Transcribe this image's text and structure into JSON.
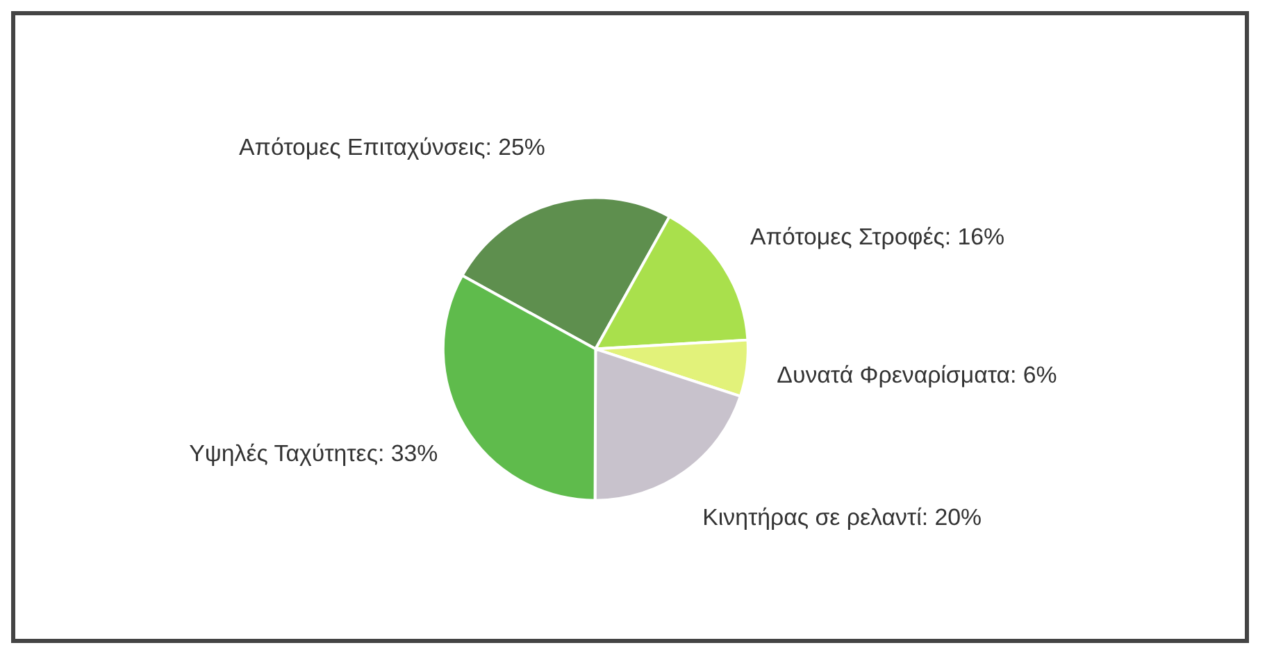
{
  "chart_data": {
    "type": "pie",
    "categories": [
      "Απότομες Επιταχύνσεις",
      "Απότομες Στροφές",
      "Δυνατά Φρεναρίσματα",
      "Κινητήρας σε ρελαντί",
      "Υψηλές Ταχύτητες"
    ],
    "values": [
      25,
      16,
      6,
      20,
      33
    ],
    "value_labels": [
      "25%",
      "16%",
      "6%",
      "20%",
      "33%"
    ],
    "colors": [
      "#5e8f4e",
      "#a9e04c",
      "#e2f27a",
      "#c8c2cc",
      "#5fbb4c"
    ],
    "legend": false
  }
}
